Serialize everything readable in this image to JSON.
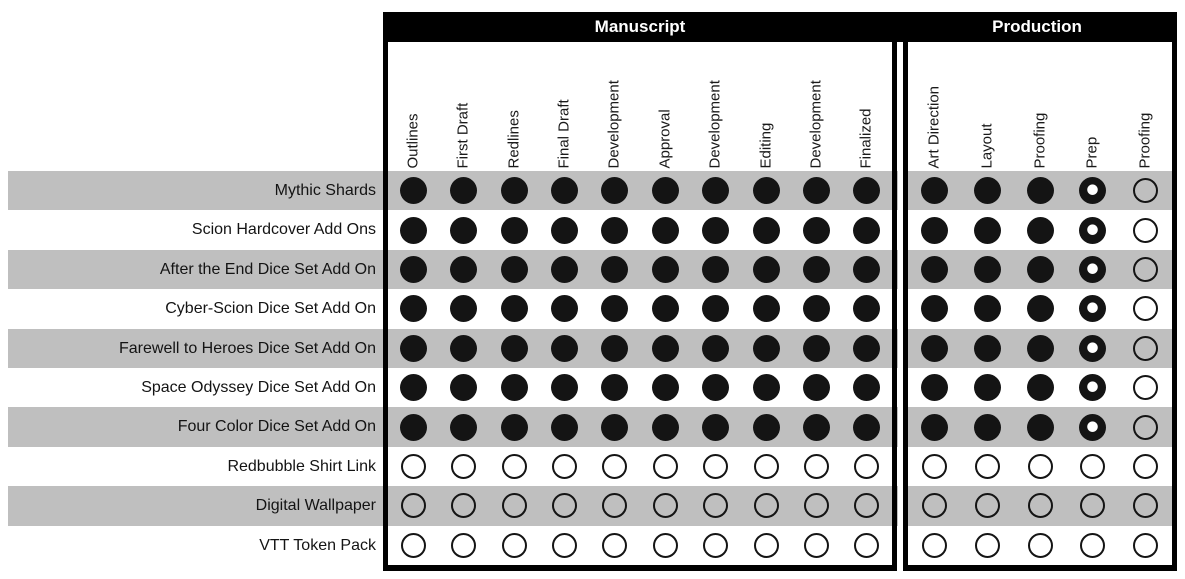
{
  "colors": {
    "header_bg": "#000000",
    "header_text": "#ffffff",
    "stripe_gray": "#bfbfbf",
    "ink": "#141414"
  },
  "chart_data": {
    "type": "table",
    "description": "Project status matrix: rows are products, columns are workflow stages, dots show stage status",
    "cell_states_legend": [
      "filled",
      "partial",
      "empty"
    ],
    "sections": [
      {
        "title": "Manuscript",
        "columns": [
          "Outlines",
          "First Draft",
          "Redlines",
          "Final Draft",
          "Development",
          "Approval",
          "Development",
          "Editing",
          "Development",
          "Finalized"
        ]
      },
      {
        "title": "Production",
        "columns": [
          "Art Direction",
          "Layout",
          "Proofing",
          "Prep",
          "Proofing"
        ]
      }
    ],
    "rows": [
      {
        "label": "Mythic Shards",
        "manuscript": [
          "filled",
          "filled",
          "filled",
          "filled",
          "filled",
          "filled",
          "filled",
          "filled",
          "filled",
          "filled"
        ],
        "production": [
          "filled",
          "filled",
          "filled",
          "partial",
          "empty"
        ]
      },
      {
        "label": "Scion Hardcover Add Ons",
        "manuscript": [
          "filled",
          "filled",
          "filled",
          "filled",
          "filled",
          "filled",
          "filled",
          "filled",
          "filled",
          "filled"
        ],
        "production": [
          "filled",
          "filled",
          "filled",
          "partial",
          "empty"
        ]
      },
      {
        "label": "After the End Dice Set Add On",
        "manuscript": [
          "filled",
          "filled",
          "filled",
          "filled",
          "filled",
          "filled",
          "filled",
          "filled",
          "filled",
          "filled"
        ],
        "production": [
          "filled",
          "filled",
          "filled",
          "partial",
          "empty"
        ]
      },
      {
        "label": "Cyber-Scion Dice Set Add On",
        "manuscript": [
          "filled",
          "filled",
          "filled",
          "filled",
          "filled",
          "filled",
          "filled",
          "filled",
          "filled",
          "filled"
        ],
        "production": [
          "filled",
          "filled",
          "filled",
          "partial",
          "empty"
        ]
      },
      {
        "label": "Farewell to Heroes Dice Set Add On",
        "manuscript": [
          "filled",
          "filled",
          "filled",
          "filled",
          "filled",
          "filled",
          "filled",
          "filled",
          "filled",
          "filled"
        ],
        "production": [
          "filled",
          "filled",
          "filled",
          "partial",
          "empty"
        ]
      },
      {
        "label": "Space Odyssey Dice Set Add On",
        "manuscript": [
          "filled",
          "filled",
          "filled",
          "filled",
          "filled",
          "filled",
          "filled",
          "filled",
          "filled",
          "filled"
        ],
        "production": [
          "filled",
          "filled",
          "filled",
          "partial",
          "empty"
        ]
      },
      {
        "label": "Four Color Dice Set Add On",
        "manuscript": [
          "filled",
          "filled",
          "filled",
          "filled",
          "filled",
          "filled",
          "filled",
          "filled",
          "filled",
          "filled"
        ],
        "production": [
          "filled",
          "filled",
          "filled",
          "partial",
          "empty"
        ]
      },
      {
        "label": "Redbubble Shirt Link",
        "manuscript": [
          "empty",
          "empty",
          "empty",
          "empty",
          "empty",
          "empty",
          "empty",
          "empty",
          "empty",
          "empty"
        ],
        "production": [
          "empty",
          "empty",
          "empty",
          "empty",
          "empty"
        ]
      },
      {
        "label": "Digital Wallpaper",
        "manuscript": [
          "empty",
          "empty",
          "empty",
          "empty",
          "empty",
          "empty",
          "empty",
          "empty",
          "empty",
          "empty"
        ],
        "production": [
          "empty",
          "empty",
          "empty",
          "empty",
          "empty"
        ]
      },
      {
        "label": "VTT Token Pack",
        "manuscript": [
          "empty",
          "empty",
          "empty",
          "empty",
          "empty",
          "empty",
          "empty",
          "empty",
          "empty",
          "empty"
        ],
        "production": [
          "empty",
          "empty",
          "empty",
          "empty",
          "empty"
        ]
      }
    ]
  }
}
